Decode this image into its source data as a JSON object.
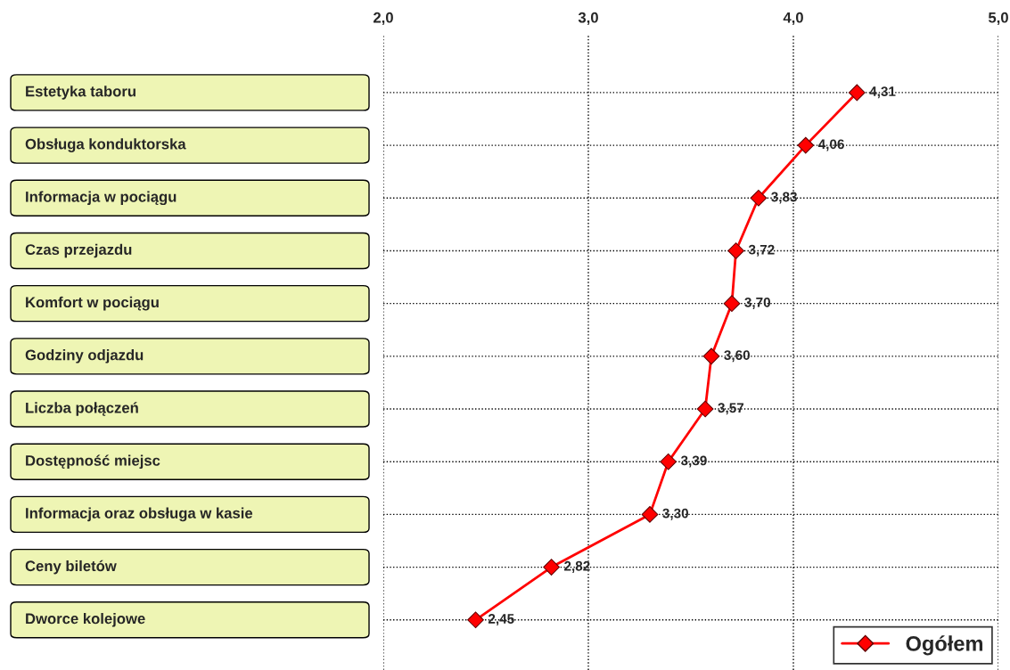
{
  "chart_data": {
    "type": "line",
    "orientation": "horizontal",
    "categories": [
      "Estetyka taboru",
      "Obsługa konduktorska",
      "Informacja w pociągu",
      "Czas przejazdu",
      "Komfort w pociągu",
      "Godziny odjazdu",
      "Liczba połączeń",
      "Dostępność miejsc",
      "Informacja oraz obsługa w kasie",
      "Ceny biletów",
      "Dworce kolejowe"
    ],
    "series": [
      {
        "name": "Ogółem",
        "color": "#ff0000",
        "values": [
          4.31,
          4.06,
          3.83,
          3.72,
          3.7,
          3.6,
          3.57,
          3.39,
          3.3,
          2.82,
          2.45
        ],
        "value_labels": [
          "4,31",
          "4,06",
          "3,83",
          "3,72",
          "3,70",
          "3,60",
          "3,57",
          "3,39",
          "3,30",
          "2,82",
          "2,45"
        ]
      }
    ],
    "xlim": [
      2,
      5
    ],
    "xticks": [
      {
        "value": 2,
        "label": "2,0"
      },
      {
        "value": 3,
        "label": "3,0"
      },
      {
        "value": 4,
        "label": "4,0"
      },
      {
        "value": 5,
        "label": "5,0"
      }
    ],
    "grid": true,
    "legend": "bottom right",
    "marker": "diamond",
    "line_style": "solid"
  }
}
